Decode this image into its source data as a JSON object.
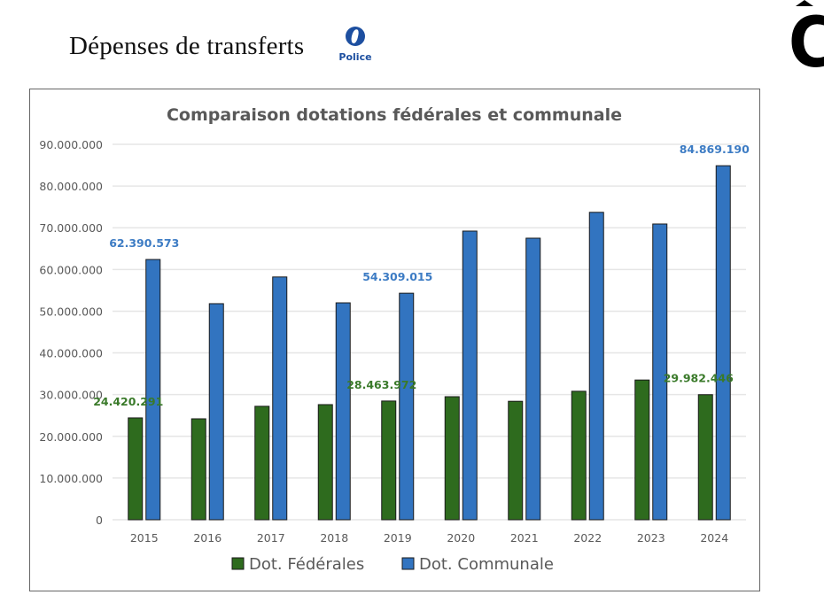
{
  "slide": {
    "title": "Dépenses de transferts",
    "logo_text": "Police",
    "corner_letter": "C"
  },
  "colors": {
    "federal": "#2e6b1e",
    "communal": "#3274c0",
    "federal_label": "#3a7a2a",
    "communal_label": "#3d7cc4",
    "title": "#595959",
    "axis_text": "#595959",
    "grid": "#e6e6e6"
  },
  "chart_data": {
    "type": "bar",
    "title": "Comparaison dotations fédérales et communale",
    "xlabel": "",
    "ylabel": "",
    "ylim": [
      0,
      90000000
    ],
    "y_ticks": [
      0,
      10000000,
      20000000,
      30000000,
      40000000,
      50000000,
      60000000,
      70000000,
      80000000,
      90000000
    ],
    "y_tick_labels": [
      "0",
      "10.000.000",
      "20.000.000",
      "30.000.000",
      "40.000.000",
      "50.000.000",
      "60.000.000",
      "70.000.000",
      "80.000.000",
      "90.000.000"
    ],
    "grid": true,
    "legend_position": "bottom",
    "categories": [
      "2015",
      "2016",
      "2017",
      "2018",
      "2019",
      "2020",
      "2021",
      "2022",
      "2023",
      "2024"
    ],
    "series": [
      {
        "name": "Dot. Fédérales",
        "key": "federal",
        "values": [
          24420291,
          24200000,
          27200000,
          27600000,
          28463972,
          29500000,
          28400000,
          30800000,
          33500000,
          29982446
        ],
        "data_labels": {
          "0": "24.420.291",
          "4": "28.463.972",
          "9": "29.982.446"
        }
      },
      {
        "name": "Dot. Communale",
        "key": "communal",
        "values": [
          62390573,
          51800000,
          58200000,
          52000000,
          54309015,
          69200000,
          67500000,
          73700000,
          70900000,
          84869190
        ],
        "data_labels": {
          "0": "62.390.573",
          "4": "54.309.015",
          "9": "84.869.190"
        }
      }
    ]
  }
}
